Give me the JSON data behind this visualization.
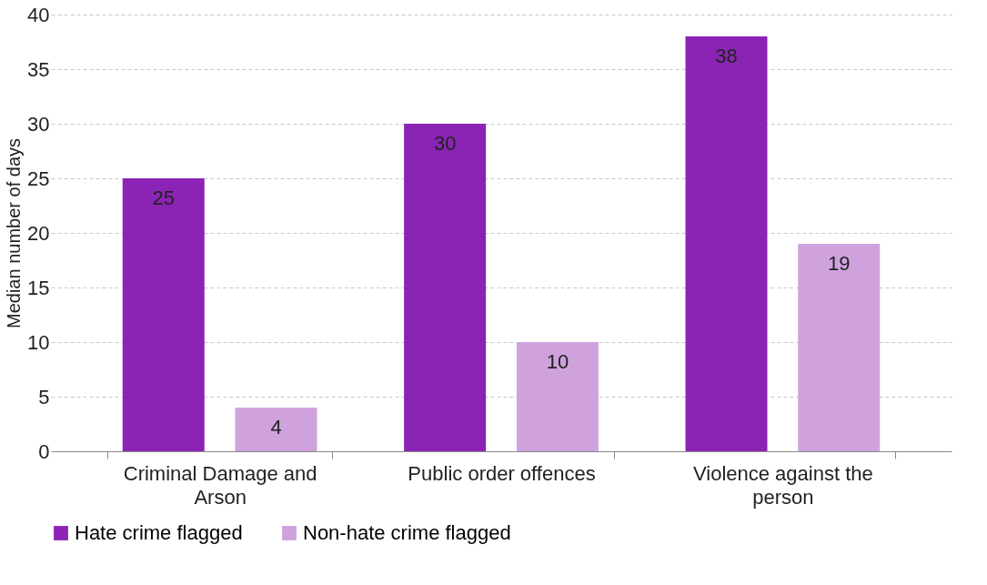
{
  "chart_data": {
    "type": "bar",
    "ylabel": "Median number of days",
    "categories": [
      "Criminal Damage and Arson",
      "Public order offences",
      "Violence against the person"
    ],
    "series": [
      {
        "name": "Hate crime flagged",
        "color": "#8b24b4",
        "values": [
          25,
          30,
          38
        ]
      },
      {
        "name": "Non-hate crime flagged",
        "color": "#cfa2de",
        "values": [
          4,
          10,
          19
        ]
      }
    ],
    "ylim": [
      0,
      40
    ],
    "yticks": [
      0,
      5,
      10,
      15,
      20,
      25,
      30,
      35,
      40
    ],
    "grid": "y",
    "legend": "bottom",
    "data_labels": true
  }
}
